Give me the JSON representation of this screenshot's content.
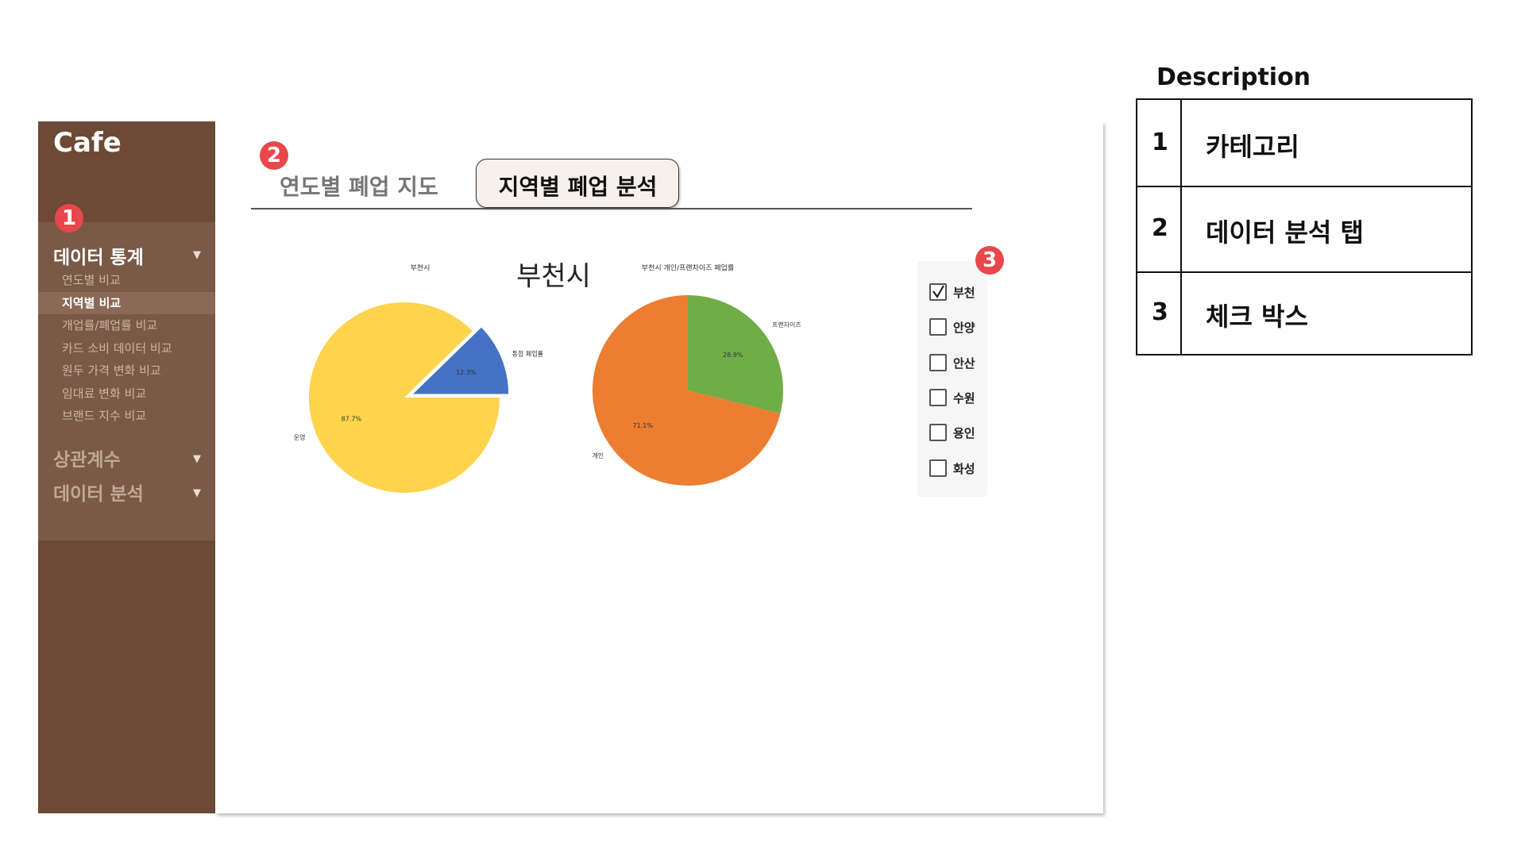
{
  "sidebar": {
    "brand": "Cafe",
    "groups": [
      {
        "label": "데이터 통계",
        "arrow": "▼",
        "items": [
          "연도별 비교",
          "지역별 비교",
          "개업률/폐업률 비교",
          "카드 소비 데이터 비교",
          "원두 가격 변화 비교",
          "임대료 변화 비교",
          "브랜드 지수 비교"
        ]
      },
      {
        "label": "상관계수",
        "arrow": "▼"
      },
      {
        "label": "데이터 분석",
        "arrow": "▼"
      }
    ]
  },
  "badges": [
    1,
    2,
    3
  ],
  "tabs": [
    "연도별 폐업 지도",
    "지역별 폐업 분석"
  ],
  "main_title": "부천시",
  "charts": [
    {
      "type": "pie",
      "title": "부천시",
      "categories": [
        "운영",
        "통합 폐업률"
      ],
      "values": [
        87.7,
        12.3
      ],
      "value_labels": [
        "87.7%",
        "12.3%"
      ],
      "colors": [
        "#fdd44c",
        "#4472c4"
      ],
      "explode": [
        0,
        0.1
      ]
    },
    {
      "type": "pie",
      "title": "부천시 개인/프랜차이즈 폐업률",
      "categories": [
        "개인",
        "프랜차이즈"
      ],
      "values": [
        71.1,
        28.9
      ],
      "value_labels": [
        "71.1%",
        "28.9%"
      ],
      "colors": [
        "#ed7d31",
        "#70ad47"
      ]
    }
  ],
  "checkboxes": [
    {
      "label": "부천",
      "checked": true
    },
    {
      "label": "안양",
      "checked": false
    },
    {
      "label": "안산",
      "checked": false
    },
    {
      "label": "수원",
      "checked": false
    },
    {
      "label": "용인",
      "checked": false
    },
    {
      "label": "화성",
      "checked": false
    }
  ],
  "description": {
    "title": "Description",
    "rows": [
      [
        1,
        "카테고리"
      ],
      [
        2,
        "데이터 분석 탭"
      ],
      [
        3,
        "체크 박스"
      ]
    ]
  }
}
